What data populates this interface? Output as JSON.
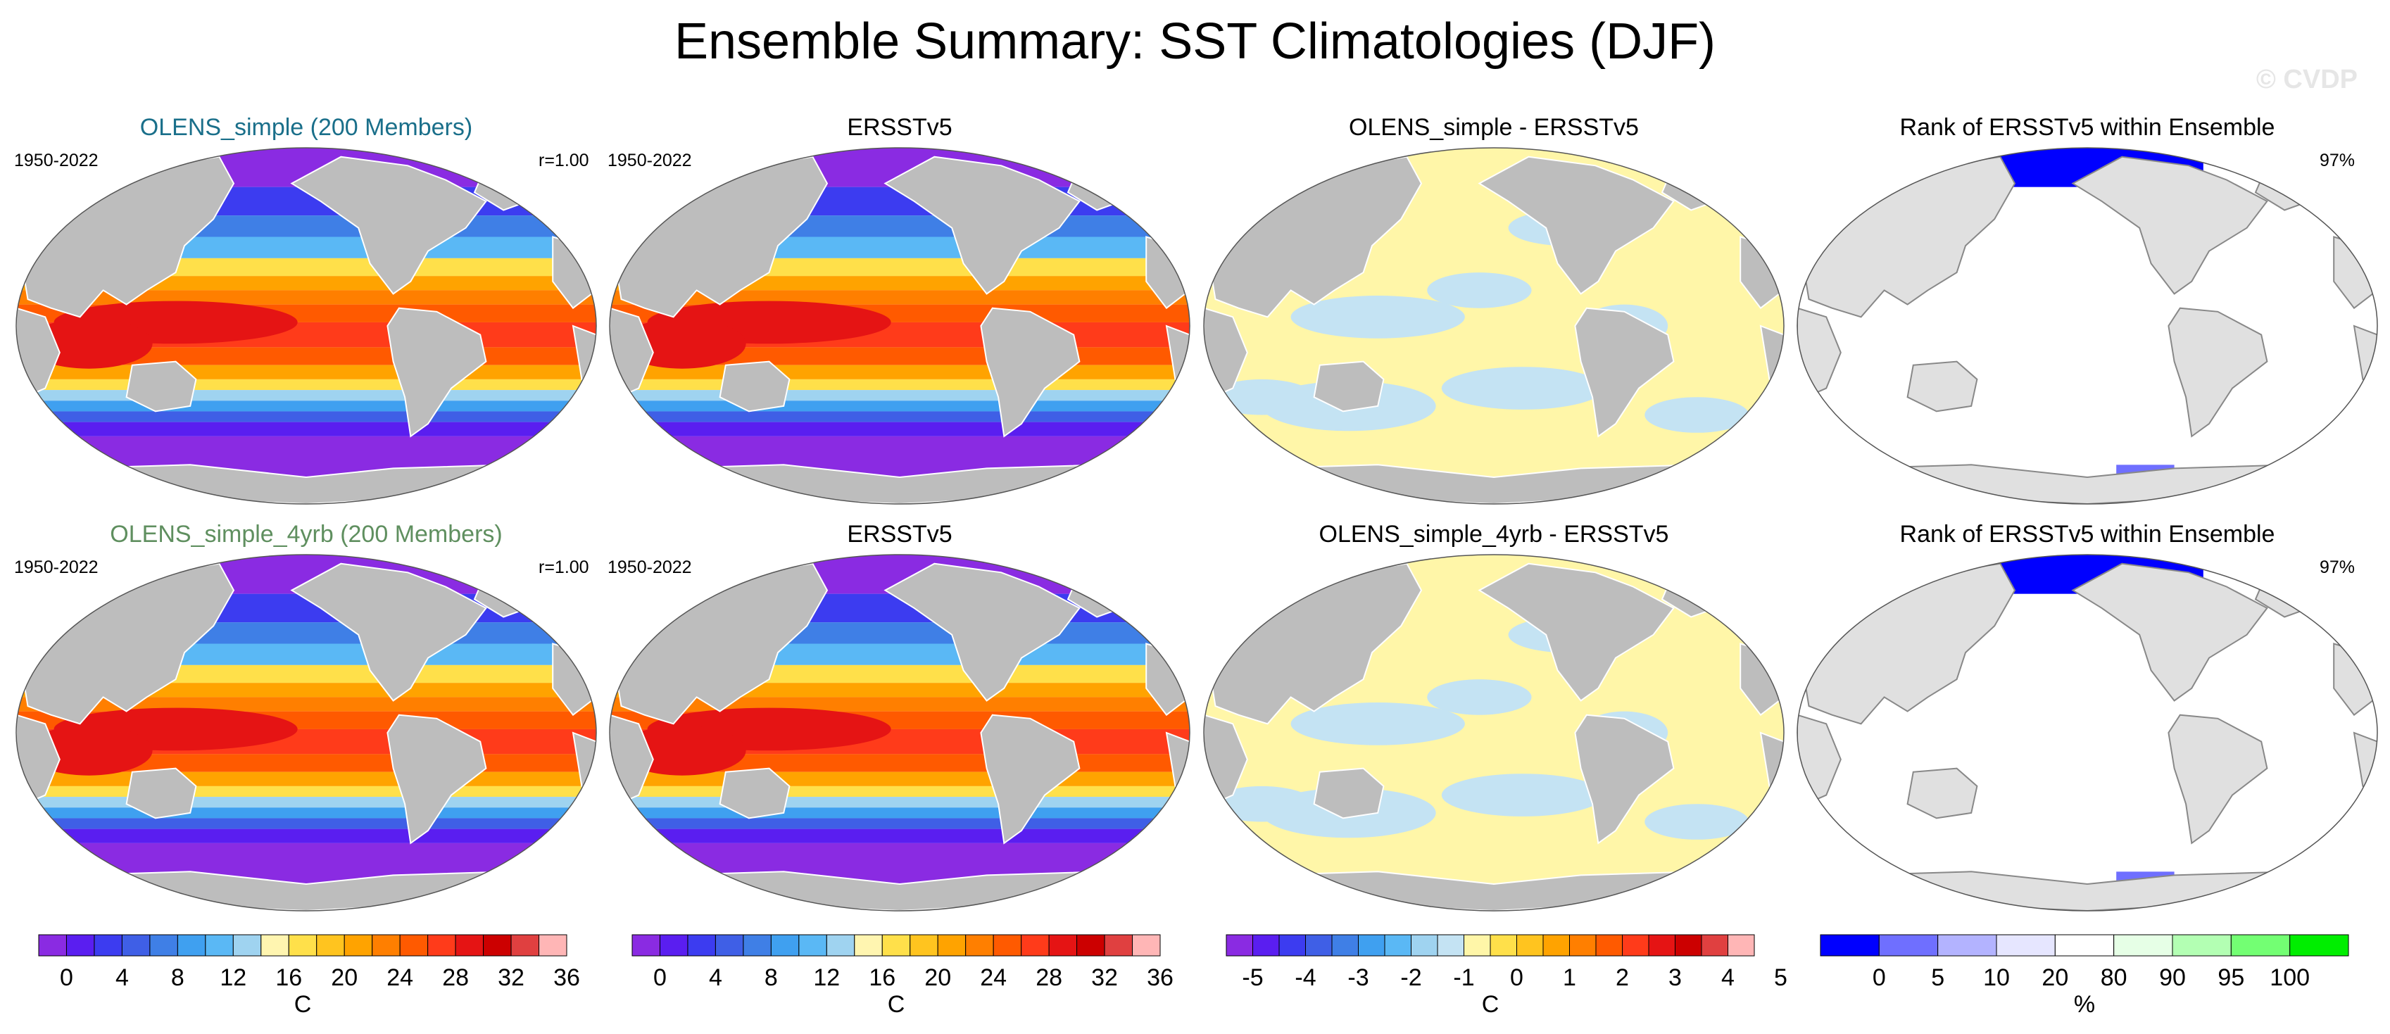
{
  "title": "Ensemble Summary: SST Climatologies (DJF)",
  "watermark": "© CVDP",
  "colors": {
    "land": "#bdbdbd",
    "land_light": "#e0e0e0",
    "ocean_white": "#ffffff",
    "title_blue": "#1a6f8a",
    "title_green": "#5f8f5f",
    "diff_pos": "#fff6a8",
    "diff_neg": "#c4e3f3",
    "rank_blue": "#0000ff"
  },
  "rows": [
    {
      "panels": [
        {
          "title": "OLENS_simple (200 Members)",
          "left_label": "1950-2022",
          "right_label": "r=1.00",
          "kind": "sst"
        },
        {
          "title": "ERSSTv5",
          "left_label": "1950-2022",
          "right_label": "",
          "kind": "sst"
        },
        {
          "title": "OLENS_simple - ERSSTv5",
          "left_label": "",
          "right_label": "",
          "kind": "diff"
        },
        {
          "title": "Rank of ERSSTv5 within Ensemble",
          "left_label": "",
          "right_label": "97%",
          "kind": "rank"
        }
      ]
    },
    {
      "panels": [
        {
          "title": "OLENS_simple_4yrb (200 Members)",
          "left_label": "1950-2022",
          "right_label": "r=1.00",
          "kind": "sst"
        },
        {
          "title": "ERSSTv5",
          "left_label": "1950-2022",
          "right_label": "",
          "kind": "sst"
        },
        {
          "title": "OLENS_simple_4yrb - ERSSTv5",
          "left_label": "",
          "right_label": "",
          "kind": "diff"
        },
        {
          "title": "Rank of ERSSTv5 within Ensemble",
          "left_label": "",
          "right_label": "97%",
          "kind": "rank"
        }
      ]
    }
  ],
  "chart_data": [
    {
      "type": "heatmap",
      "name": "SST colorbar",
      "unit": "C",
      "tick_labels": [
        "0",
        "4",
        "8",
        "12",
        "16",
        "20",
        "24",
        "28",
        "32",
        "36"
      ],
      "levels": [
        0,
        2,
        4,
        6,
        8,
        10,
        12,
        14,
        16,
        18,
        20,
        22,
        24,
        26,
        28,
        30,
        32,
        34,
        36
      ],
      "colors": [
        "#8a2be2",
        "#5a1ef0",
        "#3c3cf0",
        "#3f5fe6",
        "#3f7fe6",
        "#3fa0f0",
        "#5ab8f5",
        "#9fd3f0",
        "#fff5b0",
        "#ffe04a",
        "#ffc41f",
        "#ffa300",
        "#ff7f00",
        "#ff5a00",
        "#ff3b1a",
        "#e51414",
        "#cc0000",
        "#e04040",
        "#ffb6b6"
      ]
    },
    {
      "type": "heatmap",
      "name": "Difference colorbar",
      "unit": "C",
      "tick_labels": [
        "-5",
        "-4",
        "-3",
        "-2",
        "-1",
        "0",
        "1",
        "2",
        "3",
        "4",
        "5"
      ],
      "levels": [
        -5,
        -4.5,
        -4,
        -3.5,
        -3,
        -2.5,
        -2,
        -1.5,
        -1,
        -0.5,
        0,
        0.5,
        1,
        1.5,
        2,
        2.5,
        3,
        3.5,
        4,
        4.5,
        5
      ],
      "colors": [
        "#8a2be2",
        "#5a1ef0",
        "#3c3cf0",
        "#3f5fe6",
        "#3f7fe6",
        "#3fa0f0",
        "#5ab8f5",
        "#9fd3f0",
        "#c4e3f3",
        "#fff6a8",
        "#ffe04a",
        "#ffc41f",
        "#ffa300",
        "#ff7f00",
        "#ff5a00",
        "#ff3b1a",
        "#e51414",
        "#cc0000",
        "#e04040",
        "#ffb6b6"
      ]
    },
    {
      "type": "heatmap",
      "name": "Rank colorbar",
      "unit": "%",
      "tick_labels": [
        "0",
        "5",
        "10",
        "20",
        "80",
        "90",
        "95",
        "100"
      ],
      "levels": [
        0,
        5,
        10,
        20,
        80,
        90,
        95,
        100
      ],
      "colors": [
        "#0000ff",
        "#6f6fff",
        "#b3b3ff",
        "#e6e6ff",
        "#ffffff",
        "#e6ffe6",
        "#b3ffb3",
        "#73ff73",
        "#00ee00"
      ]
    }
  ]
}
